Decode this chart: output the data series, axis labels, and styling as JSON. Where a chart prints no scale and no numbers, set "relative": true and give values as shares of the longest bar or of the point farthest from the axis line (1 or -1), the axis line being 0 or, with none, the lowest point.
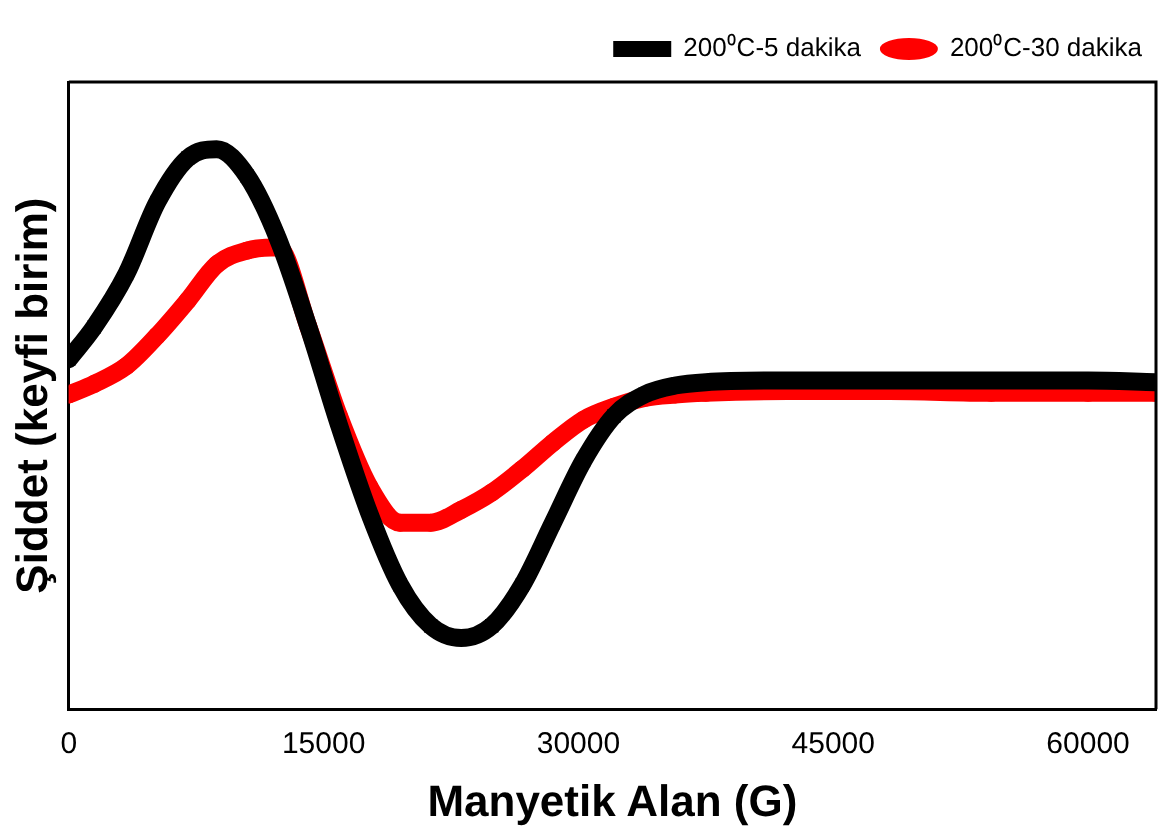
{
  "chart_data": {
    "type": "line",
    "xlabel": "Manyetik Alan (G)",
    "ylabel": "Şiddet (keyfi birim)",
    "relative": true,
    "xlim": [
      0,
      64000
    ],
    "xticks": [
      0,
      15000,
      30000,
      45000,
      60000
    ],
    "x": [
      0,
      1500,
      3400,
      5200,
      7000,
      8700,
      10500,
      12300,
      14100,
      15900,
      17700,
      19500,
      21300,
      23100,
      24900,
      26700,
      28500,
      30300,
      32100,
      33900,
      35700,
      37500,
      42300,
      48300,
      54300,
      60000,
      64000
    ],
    "legend": "top right",
    "grid": false,
    "line_style": "solid",
    "series": [
      {
        "name": "200⁰C-5 dakika",
        "color": "#000000",
        "marker": "square",
        "values": [
          0.625,
          0.683,
          0.778,
          0.905,
          0.984,
          1,
          0.952,
          0.841,
          0.683,
          0.508,
          0.349,
          0.222,
          0.149,
          0.127,
          0.149,
          0.222,
          0.333,
          0.444,
          0.524,
          0.562,
          0.578,
          0.584,
          0.587,
          0.587,
          0.587,
          0.587,
          0.584
        ]
      },
      {
        "name": "200⁰C-30 dakika",
        "color": "#ff0000",
        "marker": "circle",
        "values": [
          0.562,
          0.581,
          0.613,
          0.667,
          0.73,
          0.794,
          0.819,
          0.825,
          0.683,
          0.524,
          0.397,
          0.333,
          0.333,
          0.356,
          0.387,
          0.429,
          0.476,
          0.517,
          0.54,
          0.556,
          0.562,
          0.565,
          0.568,
          0.568,
          0.565,
          0.565,
          0.565
        ]
      }
    ]
  }
}
